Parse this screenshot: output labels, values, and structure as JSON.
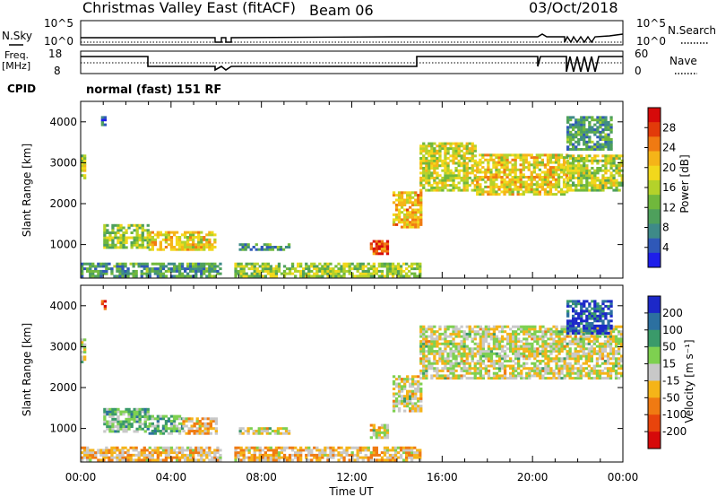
{
  "header": {
    "title": "Christmas Valley East (fitACF)",
    "beam": "Beam 06",
    "date": "03/Oct/2018"
  },
  "panels": {
    "nsky": {
      "label": "N.Sky",
      "right_label": "N.Search",
      "left_ticks": [
        "10^5",
        "10^0"
      ],
      "right_ticks": [
        "10^5",
        "10^0"
      ],
      "right_line_style": "dotted"
    },
    "freq": {
      "label": "Freq.",
      "unit": "[MHz]",
      "right_label": "Nave",
      "left_ticks": [
        "18",
        "8"
      ],
      "right_ticks": [
        "60",
        "0"
      ],
      "right_line_style": "dotted"
    },
    "cpid": {
      "label": "CPID",
      "mode": "normal (fast) 151 RF"
    }
  },
  "chart_data": [
    {
      "type": "heatmap",
      "name": "power",
      "ylabel": "Slant Range [km]",
      "ylim": [
        180,
        4500
      ],
      "xlim": [
        0,
        24
      ],
      "yticks": [
        "1000",
        "2000",
        "3000",
        "4000"
      ],
      "colorbar_label": "Power [dB]",
      "colorbar_ticks": [
        "4",
        "8",
        "12",
        "16",
        "20",
        "24",
        "28"
      ],
      "colorscale": [
        "#1e1eea",
        "#2f58b8",
        "#3e8a88",
        "#4ea05c",
        "#70b83c",
        "#b4d22a",
        "#f2d81c",
        "#f5b418",
        "#f07a12",
        "#e23a0a",
        "#d60a0a"
      ],
      "regions": [
        {
          "t": [
            0.0,
            0.2
          ],
          "r": [
            2600,
            3200
          ],
          "level": 0.5
        },
        {
          "t": [
            0.9,
            1.1
          ],
          "r": [
            3900,
            4100
          ],
          "level": 0.2
        },
        {
          "t": [
            1.0,
            3.0
          ],
          "r": [
            900,
            1500
          ],
          "level": 0.45
        },
        {
          "t": [
            3.0,
            6.0
          ],
          "r": [
            850,
            1300
          ],
          "level": 0.6
        },
        {
          "t": [
            0.0,
            6.2
          ],
          "r": [
            200,
            550
          ],
          "level": 0.3
        },
        {
          "t": [
            6.8,
            15.0
          ],
          "r": [
            200,
            550
          ],
          "level": 0.45
        },
        {
          "t": [
            7.0,
            9.2
          ],
          "r": [
            850,
            1000
          ],
          "level": 0.3
        },
        {
          "t": [
            12.8,
            13.6
          ],
          "r": [
            750,
            1100
          ],
          "level": 0.85
        },
        {
          "t": [
            13.8,
            15.0
          ],
          "r": [
            1400,
            2300
          ],
          "level": 0.65
        },
        {
          "t": [
            15.0,
            17.5
          ],
          "r": [
            2300,
            3500
          ],
          "level": 0.55
        },
        {
          "t": [
            17.5,
            21.5
          ],
          "r": [
            2200,
            3200
          ],
          "level": 0.6
        },
        {
          "t": [
            21.5,
            24.0
          ],
          "r": [
            2300,
            3200
          ],
          "level": 0.5
        },
        {
          "t": [
            21.5,
            23.5
          ],
          "r": [
            3300,
            4100
          ],
          "level": 0.3
        }
      ]
    },
    {
      "type": "heatmap",
      "name": "velocity",
      "ylabel": "Slant Range [km]",
      "ylim": [
        180,
        4500
      ],
      "xlim": [
        0,
        24
      ],
      "yticks": [
        "1000",
        "2000",
        "3000",
        "4000"
      ],
      "xlabel": "Time UT",
      "xticks": [
        "00:00",
        "04:00",
        "08:00",
        "12:00",
        "16:00",
        "20:00",
        "00:00"
      ],
      "colorbar_label": "Velocity [m s⁻¹]",
      "colorbar_ticks": [
        "200",
        "100",
        "50",
        "15",
        "-15",
        "-50",
        "-100",
        "-200"
      ],
      "colorscale": [
        "#1c28c8",
        "#2c70a0",
        "#3a9a6a",
        "#7ed050",
        "#c8c8c8",
        "#f5b418",
        "#f07a12",
        "#e8440c",
        "#d60a0a"
      ],
      "regions": [
        {
          "t": [
            0.0,
            0.2
          ],
          "r": [
            2600,
            3200
          ],
          "level": 0.45
        },
        {
          "t": [
            0.9,
            1.1
          ],
          "r": [
            3900,
            4100
          ],
          "level": 0.85
        },
        {
          "t": [
            1.0,
            3.0
          ],
          "r": [
            900,
            1500
          ],
          "level": 0.35
        },
        {
          "t": [
            3.0,
            4.5
          ],
          "r": [
            850,
            1300
          ],
          "level": 0.35
        },
        {
          "t": [
            4.5,
            6.0
          ],
          "r": [
            850,
            1250
          ],
          "level": 0.6
        },
        {
          "t": [
            0.0,
            6.2
          ],
          "r": [
            200,
            550
          ],
          "level": 0.6
        },
        {
          "t": [
            6.8,
            15.0
          ],
          "r": [
            200,
            550
          ],
          "level": 0.6
        },
        {
          "t": [
            7.0,
            9.2
          ],
          "r": [
            850,
            1000
          ],
          "level": 0.5
        },
        {
          "t": [
            12.8,
            13.6
          ],
          "r": [
            750,
            1100
          ],
          "level": 0.5
        },
        {
          "t": [
            13.8,
            15.0
          ],
          "r": [
            1400,
            2300
          ],
          "level": 0.5
        },
        {
          "t": [
            15.0,
            24.0
          ],
          "r": [
            2200,
            3500
          ],
          "level": 0.5
        },
        {
          "t": [
            21.5,
            23.5
          ],
          "r": [
            3300,
            4100
          ],
          "level": 0.1
        }
      ]
    }
  ]
}
